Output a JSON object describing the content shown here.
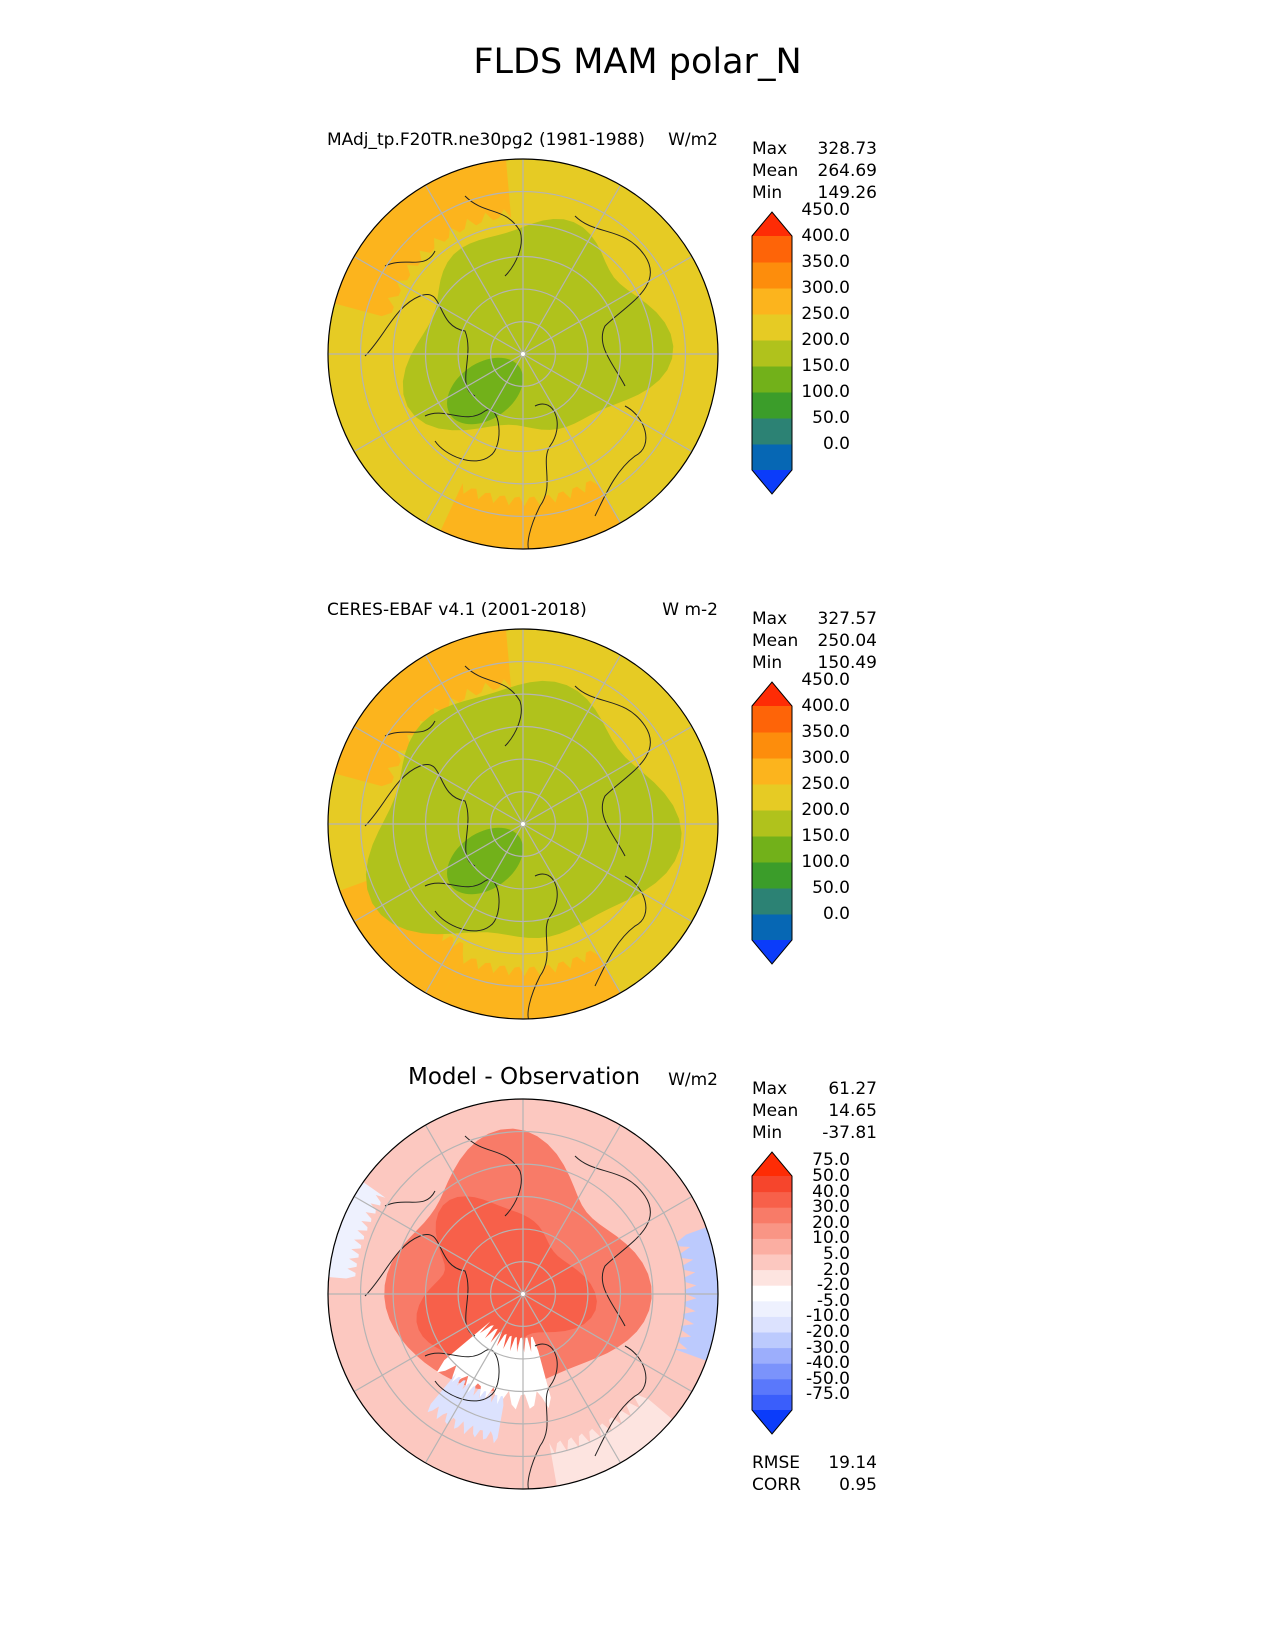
{
  "title": "FLDS MAM polar_N",
  "panels": [
    {
      "id": "model",
      "left_title": "MAdj_tp.F20TR.ne30pg2 (1981-1988)",
      "center_title": "",
      "units": "W/m2",
      "stats": [
        {
          "label": "Max",
          "value": "328.73"
        },
        {
          "label": "Mean",
          "value": "264.69"
        },
        {
          "label": "Min",
          "value": "149.26"
        }
      ],
      "colorbar": {
        "levels": [
          "0.0",
          "50.0",
          "100.0",
          "150.0",
          "200.0",
          "250.0",
          "300.0",
          "350.0",
          "400.0",
          "450.0"
        ],
        "colors": [
          "#0b3cfa",
          "#0667b4",
          "#2c8274",
          "#3b9d2a",
          "#72b11a",
          "#b0c21c",
          "#e6cb24",
          "#fcb41d",
          "#fd8d0c",
          "#fe6408",
          "#fe2c05"
        ]
      }
    },
    {
      "id": "obs",
      "left_title": "CERES-EBAF v4.1 (2001-2018)",
      "center_title": "",
      "units": "W m-2",
      "stats": [
        {
          "label": "Max",
          "value": "327.57"
        },
        {
          "label": "Mean",
          "value": "250.04"
        },
        {
          "label": "Min",
          "value": "150.49"
        }
      ],
      "colorbar": {
        "levels": [
          "0.0",
          "50.0",
          "100.0",
          "150.0",
          "200.0",
          "250.0",
          "300.0",
          "350.0",
          "400.0",
          "450.0"
        ],
        "colors": [
          "#0b3cfa",
          "#0667b4",
          "#2c8274",
          "#3b9d2a",
          "#72b11a",
          "#b0c21c",
          "#e6cb24",
          "#fcb41d",
          "#fd8d0c",
          "#fe6408",
          "#fe2c05"
        ]
      }
    },
    {
      "id": "diff",
      "left_title": "",
      "center_title": "Model - Observation",
      "units": "W/m2",
      "stats": [
        {
          "label": "Max",
          "value": "61.27"
        },
        {
          "label": "Mean",
          "value": "14.65"
        },
        {
          "label": "Min",
          "value": "-37.81"
        }
      ],
      "colorbar": {
        "levels": [
          "-75.0",
          "-50.0",
          "-40.0",
          "-30.0",
          "-20.0",
          "-10.0",
          "-5.0",
          "-2.0",
          "2.0",
          "5.0",
          "10.0",
          "20.0",
          "30.0",
          "40.0",
          "50.0",
          "75.0"
        ],
        "colors": [
          "#0b3cfa",
          "#3a5efb",
          "#5a78fb",
          "#7b93fb",
          "#9caefc",
          "#bccafd",
          "#dce2fe",
          "#eef1fe",
          "#ffffff",
          "#fde4e0",
          "#fcc8c0",
          "#fbaea2",
          "#f99585",
          "#f87b68",
          "#f7604a",
          "#f6452c",
          "#fe2c05"
        ]
      }
    }
  ],
  "metrics": [
    {
      "label": "RMSE",
      "value": "19.14"
    },
    {
      "label": "CORR",
      "value": "0.95"
    }
  ],
  "chart_data": {
    "type": "heatmap",
    "title": "FLDS MAM polar_N",
    "projection": "north-polar-stereographic",
    "variable": "FLDS",
    "season": "MAM",
    "region": "polar_N",
    "maps": [
      {
        "name": "MAdj_tp.F20TR.ne30pg2 (1981-1988)",
        "units": "W/m2",
        "max": 328.73,
        "mean": 264.69,
        "min": 149.26
      },
      {
        "name": "CERES-EBAF v4.1 (2001-2018)",
        "units": "W m-2",
        "max": 327.57,
        "mean": 250.04,
        "min": 150.49
      },
      {
        "name": "Model - Observation",
        "units": "W/m2",
        "max": 61.27,
        "mean": 14.65,
        "min": -37.81,
        "rmse": 19.14,
        "corr": 0.95
      }
    ],
    "grid": true
  }
}
